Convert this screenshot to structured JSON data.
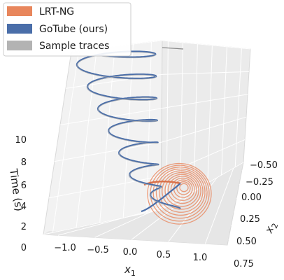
{
  "chart_data": {
    "type": "line",
    "projection": "3d",
    "title": "",
    "axes": {
      "x": {
        "label": "x",
        "label_subscript": "1",
        "ticks": [
          "−1.0",
          "−0.5",
          "0.0",
          "0.5",
          "1.0"
        ],
        "range": [
          -1.2,
          1.3
        ]
      },
      "y": {
        "label": "x",
        "label_subscript": "2",
        "ticks": [
          "−0.50",
          "−0.25",
          "0.00",
          "0.25",
          "0.50",
          "0.75"
        ],
        "range": [
          -0.6,
          0.8
        ]
      },
      "z": {
        "label": "Time (s)",
        "ticks": [
          "0",
          "2",
          "4",
          "6",
          "8",
          "10"
        ],
        "range": [
          0,
          10
        ]
      }
    },
    "grid": true,
    "legend": {
      "placement": "top-left",
      "entries": [
        {
          "name": "LRT-NG",
          "color": "#e8865c"
        },
        {
          "name": "GoTube (ours)",
          "color": "#4a6ea9"
        },
        {
          "name": "Sample traces",
          "color": "#b3b3b3"
        }
      ]
    },
    "series": [
      {
        "name": "GoTube (ours)",
        "color": "#4a6ea9",
        "description": "spiral trajectory tube, x1 from ~0 to -1 oscillating, time 0 to 10",
        "t_start": 0,
        "t_end": 10
      },
      {
        "name": "LRT-NG",
        "color": "#e8865c",
        "description": "concentric rings around (x1,x2)=(0.6,0.1), time 0 to ~1",
        "rings": 12,
        "t_start": 0,
        "t_end": 1
      },
      {
        "name": "Sample traces",
        "color": "#b3b3b3",
        "description": "thin traces inside GoTube tube"
      }
    ]
  }
}
